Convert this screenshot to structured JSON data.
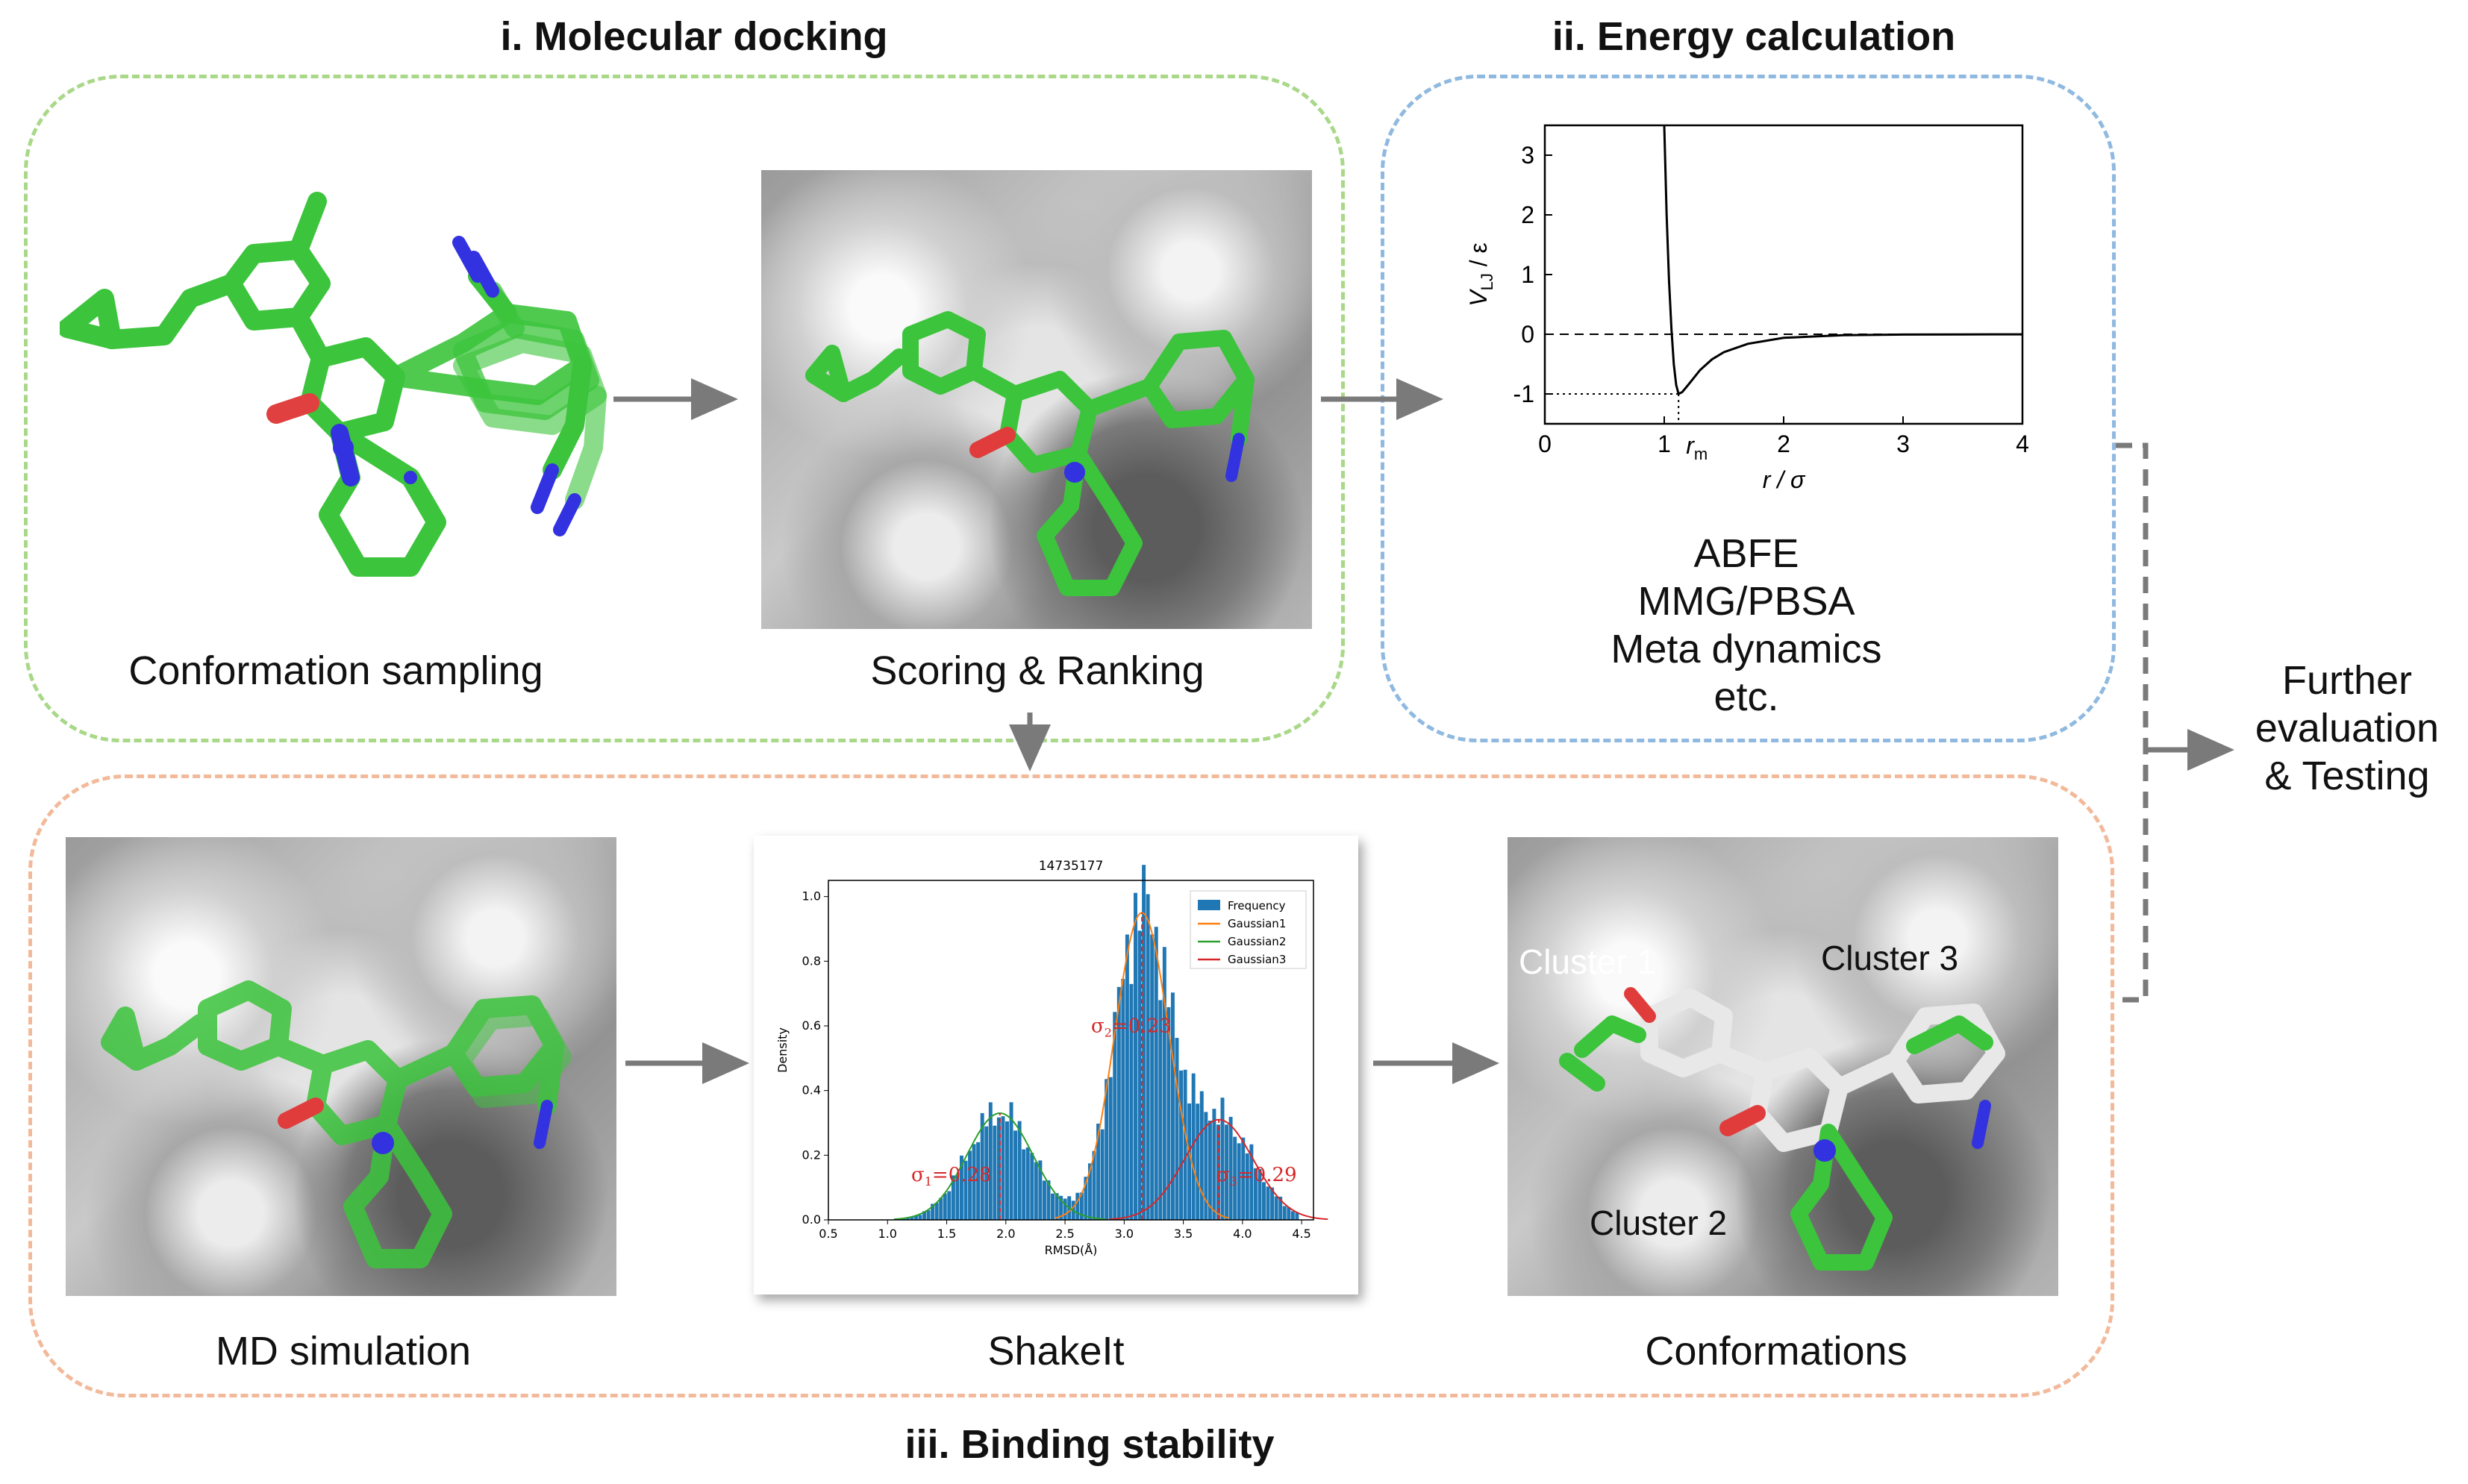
{
  "sections": {
    "docking": {
      "title": "i. Molecular docking"
    },
    "energy": {
      "title": "ii. Energy calculation"
    },
    "stability": {
      "title": "iii. Binding stability"
    }
  },
  "captions": {
    "conformation_sampling": "Conformation sampling",
    "scoring_ranking": "Scoring & Ranking",
    "md_simulation": "MD simulation",
    "shakeit": "ShakeIt",
    "conformations": "Conformations"
  },
  "energy_methods": [
    "ABFE",
    "MMG/PBSA",
    "Meta dynamics",
    "etc."
  ],
  "further": [
    "Further",
    "evaluation",
    "& Testing"
  ],
  "clusters": [
    "Cluster 1",
    "Cluster 2",
    "Cluster 3"
  ],
  "colors": {
    "docking_border": "#a9d889",
    "energy_border": "#8fb9e0",
    "stability_border": "#f2b99a",
    "arrow": "#7a7a7a",
    "ligand_green": "#3cc43c",
    "nitrogen_blue": "#3232e0",
    "oxygen_red": "#e03c3c",
    "hist_bar": "#1f77b4",
    "gauss1": "#ff7f0e",
    "gauss2": "#2ca02c",
    "gauss3": "#d62728"
  },
  "chart_data": [
    {
      "type": "line",
      "xlabel": "r / σ",
      "ylabel": "V_LJ / ε",
      "ylabel_main": "V",
      "ylabel_sub": "LJ",
      "ylabel_rest": " / ε",
      "rm_main": "r",
      "rm_sub": "m",
      "xlim": [
        0,
        4
      ],
      "ylim": [
        -1.5,
        3.5
      ],
      "xticks": [
        0,
        1,
        2,
        3,
        4
      ],
      "yticks": [
        -1,
        0,
        1,
        2,
        3
      ],
      "series": [
        {
          "x": [
            1.0,
            1.02,
            1.04,
            1.06,
            1.08,
            1.1,
            1.12,
            1.15,
            1.2,
            1.3,
            1.4,
            1.5,
            1.7,
            2.0,
            2.5,
            3.0,
            3.5,
            4.0
          ],
          "y": [
            3.5,
            2.0,
            0.9,
            0.1,
            -0.5,
            -0.85,
            -1.0,
            -0.97,
            -0.85,
            -0.6,
            -0.42,
            -0.3,
            -0.16,
            -0.06,
            -0.015,
            -0.005,
            -0.002,
            -0.001
          ]
        }
      ]
    },
    {
      "type": "bar",
      "title": "14735177",
      "xlabel": "RMSD(Å)",
      "ylabel": "Density",
      "xlim": [
        0.5,
        4.6
      ],
      "ylim": [
        0,
        1.05
      ],
      "xticks": [
        0.5,
        1.0,
        1.5,
        2.0,
        2.5,
        3.0,
        3.5,
        4.0,
        4.5
      ],
      "yticks": [
        0.0,
        0.2,
        0.4,
        0.6,
        0.8,
        1.0
      ],
      "legend": [
        "Frequency",
        "Gaussian1",
        "Gaussian2",
        "Gaussian3"
      ],
      "legend_position": "top-right",
      "gaussians": [
        {
          "name": "Gaussian1",
          "mu": 3.15,
          "sigma": 0.23,
          "amp": 0.95
        },
        {
          "name": "Gaussian2",
          "mu": 1.95,
          "sigma": 0.28,
          "amp": 0.33
        },
        {
          "name": "Gaussian3",
          "mu": 3.8,
          "sigma": 0.29,
          "amp": 0.31
        }
      ],
      "annotations": [
        {
          "greek": "σ",
          "sub": "1",
          "value": "=0.28",
          "x": 1.2,
          "y": 0.12
        },
        {
          "greek": "σ",
          "sub": "2",
          "value": "=0.23",
          "x": 2.72,
          "y": 0.58
        },
        {
          "greek": "σ",
          "sub": "3",
          "value": "=0.29",
          "x": 3.78,
          "y": 0.12
        }
      ]
    }
  ]
}
